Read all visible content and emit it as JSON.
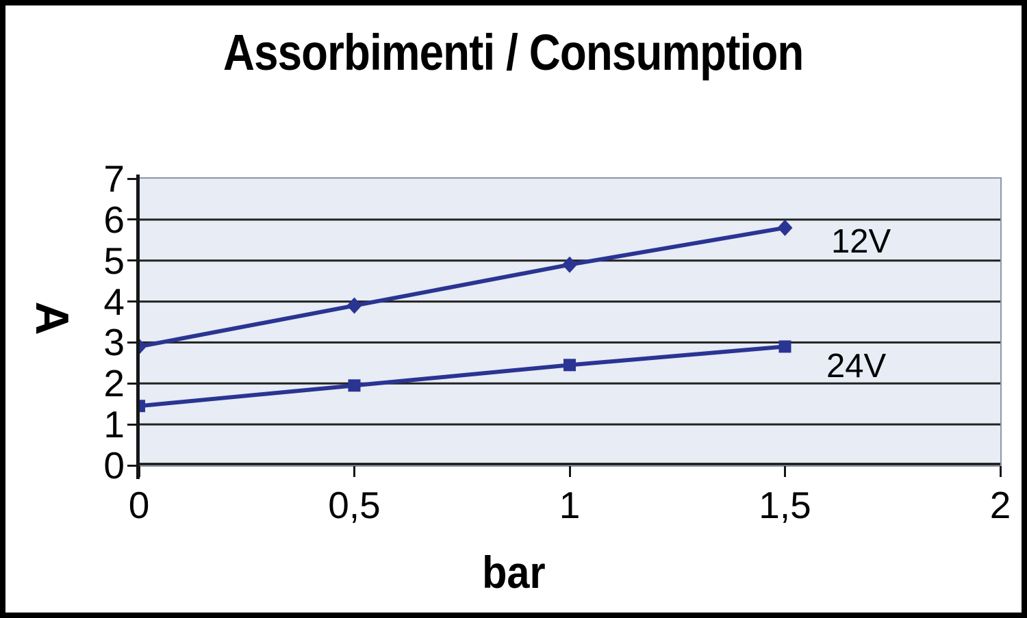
{
  "chart_data": {
    "type": "line",
    "title": "Assorbimenti / Consumption",
    "xlabel": "bar",
    "ylabel": "A",
    "x": [
      0,
      0.5,
      1,
      1.5
    ],
    "series": [
      {
        "name": "12V",
        "marker": "diamond",
        "values": [
          2.9,
          3.9,
          4.9,
          5.8
        ]
      },
      {
        "name": "24V",
        "marker": "square",
        "values": [
          1.45,
          1.95,
          2.45,
          2.9
        ]
      }
    ],
    "xlim": [
      0,
      2
    ],
    "ylim": [
      0,
      7
    ],
    "xticks": [
      0,
      0.5,
      1,
      1.5,
      2
    ],
    "xtick_labels": [
      "0",
      "0,5",
      "1",
      "1,5",
      "2"
    ],
    "yticks": [
      0,
      1,
      2,
      3,
      4,
      5,
      6,
      7
    ],
    "ytick_labels": [
      "0",
      "1",
      "2",
      "3",
      "4",
      "5",
      "6",
      "7"
    ],
    "grid": true,
    "legend_position": "inline-right-of-line-ends",
    "colors": {
      "line": "#2a3492",
      "plot_bg": "#e7ecf5",
      "grid": "#222222",
      "axis": "#161616",
      "text": "#000000",
      "plot_border": "#8e97a3",
      "frame_border": "#000000",
      "background": "#ffffff"
    }
  }
}
